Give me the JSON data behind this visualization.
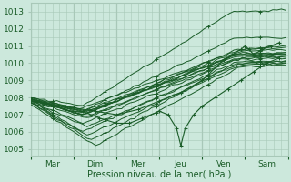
{
  "bg_color": "#cce8dc",
  "grid_color": "#a8c8b8",
  "line_color": "#1a5c28",
  "marker_color": "#1a5c28",
  "ylabel_ticks": [
    1005,
    1006,
    1007,
    1008,
    1009,
    1010,
    1011,
    1012,
    1013
  ],
  "ylim": [
    1004.6,
    1013.5
  ],
  "xlabel": "Pression niveau de la mer( hPa )",
  "xtick_labels": [
    "Mar",
    "Dim",
    "Mer",
    "Jeu",
    "Ven",
    "Sam"
  ],
  "xtick_positions": [
    0.5,
    1.5,
    2.5,
    3.5,
    4.5,
    5.5
  ],
  "xlim": [
    0,
    6.0
  ],
  "label_fontsize": 7.0,
  "tick_fontsize": 6.5
}
